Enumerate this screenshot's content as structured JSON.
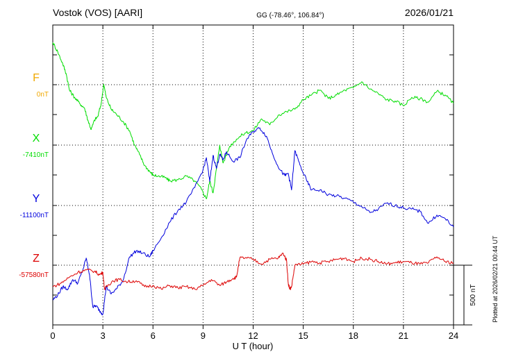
{
  "header": {
    "station": "Vostok (VOS)  [AARI]",
    "coords": "GG (-78.46°, 106.84°)",
    "date": "2026/01/21"
  },
  "footer": {
    "plotted_at": "Plotted at 2026/02/21 00:44 UT"
  },
  "chart_data": {
    "type": "line",
    "xlabel": "U T (hour)",
    "xlim": [
      0,
      24
    ],
    "x_ticks": [
      "0",
      "3",
      "6",
      "9",
      "12",
      "15",
      "18",
      "21",
      "24"
    ],
    "grid": true,
    "scale_bar": {
      "label": "500 nT",
      "value_nT": 500
    },
    "components": [
      {
        "name": "F",
        "baseline_label": "0nT",
        "color": "#f0a800",
        "values": []
      },
      {
        "name": "X",
        "baseline_label": "-7410nT",
        "color": "#00dd00",
        "x": [
          0,
          0.3,
          0.6,
          0.8,
          1.0,
          1.3,
          1.6,
          1.9,
          2.1,
          2.3,
          2.5,
          2.7,
          2.9,
          3.05,
          3.2,
          3.5,
          3.8,
          4.2,
          4.6,
          4.9,
          5.2,
          5.5,
          5.8,
          6.0,
          6.3,
          6.7,
          7.0,
          7.5,
          8.0,
          8.5,
          8.9,
          9.2,
          9.4,
          9.6,
          9.8,
          10.0,
          10.2,
          10.6,
          11.0,
          11.5,
          12.0,
          12.5,
          13.0,
          13.5,
          14.0,
          14.5,
          15.0,
          15.5,
          16.0,
          16.5,
          17.0,
          17.5,
          18.0,
          18.5,
          19.0,
          19.5,
          20.0,
          20.5,
          21.0,
          21.5,
          22.0,
          22.5,
          23.0,
          23.5,
          24.0
        ],
        "values": [
          860,
          780,
          680,
          600,
          460,
          400,
          350,
          310,
          210,
          130,
          210,
          240,
          350,
          510,
          400,
          300,
          260,
          200,
          120,
          0,
          -80,
          -170,
          -220,
          -250,
          -260,
          -270,
          -300,
          -290,
          -260,
          -300,
          -370,
          -450,
          -300,
          -400,
          -200,
          0,
          -150,
          -10,
          50,
          100,
          120,
          220,
          170,
          250,
          280,
          300,
          380,
          420,
          460,
          390,
          420,
          460,
          480,
          530,
          470,
          430,
          380,
          370,
          330,
          400,
          390,
          360,
          450,
          420,
          350
        ]
      },
      {
        "name": "Y",
        "baseline_label": "-11100nT",
        "color": "#0000dd",
        "x": [
          0,
          0.3,
          0.6,
          0.9,
          1.2,
          1.5,
          1.8,
          2.0,
          2.2,
          2.4,
          2.6,
          2.8,
          3.0,
          3.2,
          3.5,
          3.8,
          4.2,
          4.6,
          5.0,
          5.4,
          5.8,
          6.0,
          6.5,
          7.0,
          7.5,
          8.0,
          8.5,
          9.0,
          9.2,
          9.4,
          9.6,
          9.8,
          10.0,
          10.2,
          10.4,
          10.8,
          11.2,
          11.6,
          12.0,
          12.4,
          12.8,
          13.2,
          13.6,
          13.9,
          14.1,
          14.3,
          14.5,
          14.8,
          15.2,
          15.5,
          16.0,
          16.5,
          17.0,
          17.5,
          18.0,
          18.5,
          19.0,
          19.5,
          20.0,
          20.5,
          21.0,
          21.5,
          22.0,
          22.5,
          23.0,
          23.5,
          24.0
        ],
        "values": [
          -790,
          -750,
          -680,
          -700,
          -620,
          -650,
          -540,
          -440,
          -580,
          -850,
          -840,
          -880,
          -910,
          -680,
          -740,
          -700,
          -630,
          -430,
          -380,
          -400,
          -430,
          -380,
          -270,
          -140,
          -40,
          30,
          150,
          300,
          400,
          200,
          420,
          310,
          430,
          380,
          450,
          370,
          400,
          550,
          620,
          650,
          580,
          420,
          300,
          250,
          270,
          130,
          460,
          340,
          210,
          130,
          130,
          90,
          80,
          60,
          30,
          -10,
          -60,
          -30,
          20,
          0,
          -20,
          -30,
          -50,
          -150,
          -80,
          -110,
          -180
        ]
      },
      {
        "name": "Z",
        "baseline_label": "-57580nT",
        "color": "#dd0000",
        "x": [
          0,
          0.5,
          1.0,
          1.5,
          2.0,
          2.5,
          2.8,
          3.0,
          3.1,
          3.3,
          3.6,
          4.0,
          4.5,
          5.0,
          5.5,
          6.0,
          6.5,
          7.0,
          7.5,
          8.0,
          8.5,
          9.0,
          9.5,
          10.0,
          10.4,
          10.8,
          11.0,
          11.2,
          11.5,
          12.0,
          12.5,
          13.0,
          13.5,
          13.8,
          14.0,
          14.1,
          14.2,
          14.3,
          14.5,
          15.0,
          15.5,
          16.0,
          16.5,
          17.0,
          17.5,
          18.0,
          18.5,
          19.0,
          19.5,
          20.0,
          20.5,
          21.0,
          21.5,
          22.0,
          22.5,
          23.0,
          23.5,
          24.0
        ],
        "values": [
          -180,
          -150,
          -100,
          -60,
          -40,
          -50,
          -80,
          -60,
          -200,
          -170,
          -130,
          -120,
          -140,
          -130,
          -180,
          -170,
          -200,
          -170,
          -190,
          -180,
          -200,
          -170,
          -120,
          -170,
          -140,
          -110,
          -100,
          60,
          60,
          50,
          10,
          50,
          60,
          100,
          40,
          -150,
          -200,
          -180,
          0,
          10,
          30,
          20,
          30,
          50,
          60,
          30,
          60,
          50,
          30,
          10,
          20,
          30,
          20,
          10,
          20,
          70,
          30,
          20
        ]
      }
    ]
  }
}
